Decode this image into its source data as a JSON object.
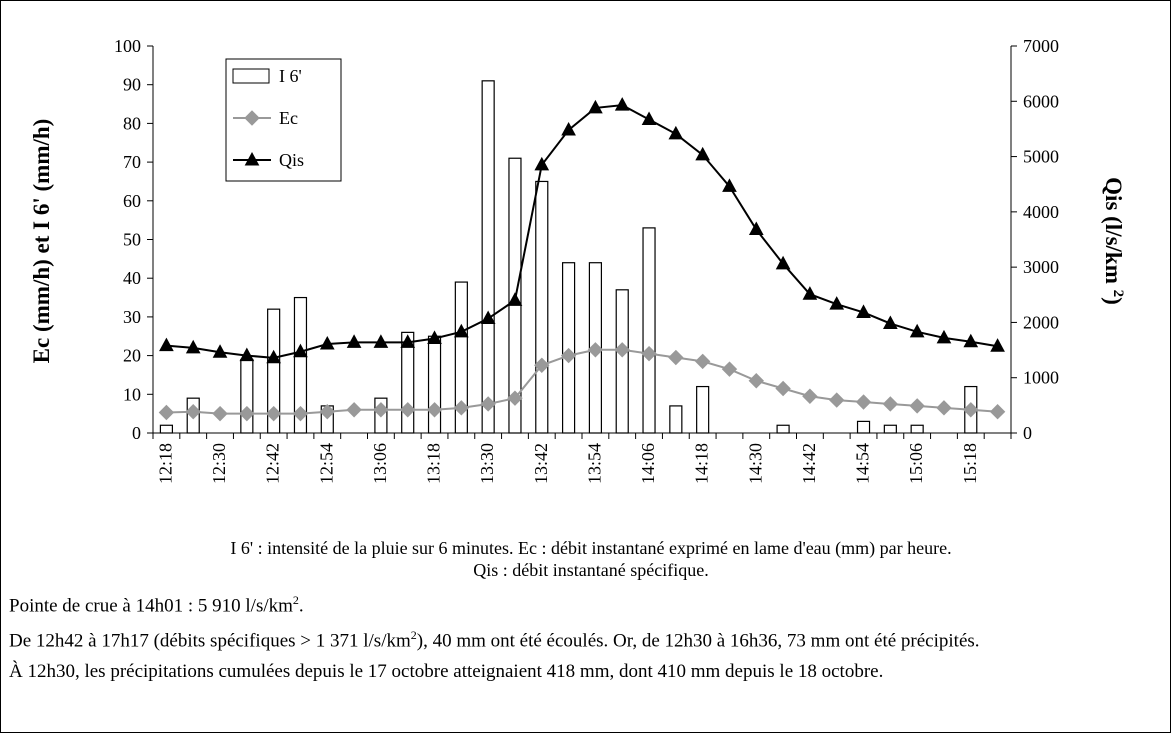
{
  "chart_data": {
    "type": "bar-line",
    "categories": [
      "12:18",
      null,
      "12:30",
      null,
      "12:42",
      null,
      "12:54",
      null,
      "13:06",
      null,
      "13:18",
      null,
      "13:30",
      null,
      "13:42",
      null,
      "13:54",
      null,
      "14:06",
      null,
      "14:18",
      null,
      "14:30",
      null,
      "14:42",
      null,
      "14:54",
      null,
      "15:06",
      null,
      "15:18",
      null
    ],
    "ylabel": "Ec (mm/h) et I 6' (mm/h)",
    "y2label": [
      "Qis (l/s/km ",
      "2",
      ")"
    ],
    "ylim": [
      0,
      100
    ],
    "yticks": [
      0,
      10,
      20,
      30,
      40,
      50,
      60,
      70,
      80,
      90,
      100
    ],
    "y2lim": [
      0,
      7000
    ],
    "y2ticks": [
      0,
      1000,
      2000,
      3000,
      4000,
      5000,
      6000,
      7000
    ],
    "series": [
      {
        "name": "I 6'",
        "type": "bar",
        "color": "#ffffff",
        "values": [
          2,
          9,
          0,
          19,
          32,
          35,
          7,
          0,
          9,
          26,
          25,
          39,
          91,
          71,
          65,
          44,
          44,
          37,
          53,
          7,
          12,
          0,
          0,
          2,
          0,
          0,
          3,
          2,
          2,
          0,
          12,
          0
        ]
      },
      {
        "name": "Ec",
        "type": "line",
        "marker": "diamond",
        "color": "#999999",
        "values": [
          5.3,
          5.5,
          5,
          5,
          5,
          5,
          5.5,
          6,
          6,
          6,
          6,
          6.5,
          7.5,
          9,
          17.5,
          20,
          21.5,
          21.5,
          20.5,
          19.5,
          18.5,
          16.5,
          13.5,
          11.5,
          9.5,
          8.5,
          8,
          7.5,
          7,
          6.5,
          6,
          5.5
        ]
      },
      {
        "name": "Qis",
        "type": "line",
        "marker": "triangle",
        "color": "#000000",
        "axis": "y2",
        "values": [
          1580,
          1540,
          1460,
          1400,
          1360,
          1470,
          1610,
          1640,
          1640,
          1640,
          1710,
          1830,
          2070,
          2400,
          4850,
          5480,
          5880,
          5930,
          5670,
          5410,
          5030,
          4460,
          3680,
          3060,
          2510,
          2330,
          2180,
          1980,
          1830,
          1720,
          1650,
          1570
        ]
      }
    ],
    "caption": [
      "I 6' : intensité de la pluie sur 6 minutes. Ec : débit instantané exprimé en lame d'eau (mm) par heure.",
      "Qis : débit instantané spécifique."
    ]
  },
  "notes": [
    [
      "Pointe de crue à 14h01 : 5 910 l/s/km",
      "2",
      "."
    ],
    [
      "De 12h42 à 17h17 (débits spécifiques > 1 371 l/s/km",
      "2",
      "), 40 mm ont été écoulés. Or, de 12h30 à 16h36, 73 mm ont été précipités."
    ],
    [
      "À 12h30, les précipitations cumulées depuis le 17 octobre atteignaient 418 mm, dont 410 mm depuis le 18 octobre."
    ]
  ]
}
